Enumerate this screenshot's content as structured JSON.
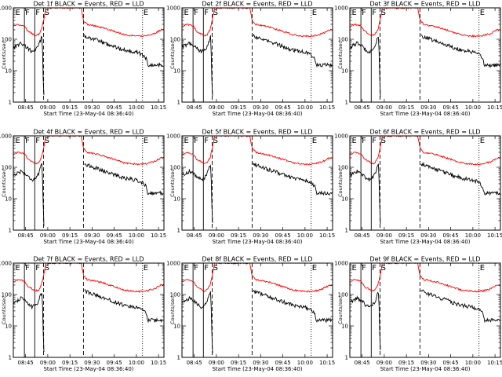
{
  "figure": {
    "y_label": "Counts/sec",
    "x_label": "Start Time (23-May-04 08:36:40)"
  },
  "chart_data": {
    "type": "line",
    "layout": "3x3 grid of panels",
    "title_template": "Det {n}f BLACK = Events, RED = LLD",
    "xlabel": "Start Time (23-May-04 08:36:40)",
    "ylabel": "Counts/sec",
    "yscale": "log",
    "ylim": [
      1,
      1000
    ],
    "y_ticks": [
      "1",
      "10",
      "100",
      "1000"
    ],
    "x_range_min_after_start": [
      0,
      102
    ],
    "x_ticks": [
      {
        "t": 8.33,
        "label": "08:45"
      },
      {
        "t": 23.33,
        "label": "09:00"
      },
      {
        "t": 38.33,
        "label": "09:15"
      },
      {
        "t": 53.33,
        "label": "09:30"
      },
      {
        "t": 68.33,
        "label": "09:45"
      },
      {
        "t": 83.33,
        "label": "10:00"
      },
      {
        "t": 98.33,
        "label": "10:15"
      }
    ],
    "markers": [
      {
        "t": 0.8,
        "label": "E",
        "style": "none"
      },
      {
        "t": 7.5,
        "label": "F",
        "style": "solid"
      },
      {
        "t": 14.5,
        "label": "F",
        "style": "solid"
      },
      {
        "t": 20.5,
        "label": "S",
        "style": "dashed"
      },
      {
        "t": 47.5,
        "label": "",
        "style": "dashed"
      },
      {
        "t": 87.5,
        "label": "E",
        "style": "dotted"
      }
    ],
    "series": [
      {
        "name": "Events",
        "color": "#000000",
        "t": [
          0,
          5,
          7.5,
          10,
          13,
          15,
          17,
          19.5,
          20.5,
          21,
          26,
          30,
          35,
          40,
          48,
          52,
          56,
          60,
          64,
          68,
          72,
          76,
          80,
          84,
          86,
          88,
          90,
          91
        ],
        "values": [
          55,
          75,
          65,
          50,
          40,
          45,
          60,
          130,
          2,
          1,
          null,
          null,
          null,
          null,
          130,
          110,
          95,
          80,
          70,
          60,
          50,
          45,
          42,
          38,
          35,
          30,
          25,
          15
        ]
      },
      {
        "name": "LLD",
        "color": "#ff0000",
        "t": [
          0,
          3,
          7.5,
          10,
          13,
          15,
          17,
          19,
          20.5,
          22,
          24,
          40,
          46,
          47.5,
          50,
          55,
          60,
          65,
          70,
          75,
          80,
          85,
          90,
          95,
          100
        ],
        "values": [
          250,
          300,
          270,
          180,
          150,
          130,
          140,
          200,
          400,
          1000,
          1000,
          1000,
          1000,
          400,
          300,
          270,
          240,
          200,
          170,
          140,
          130,
          125,
          130,
          150,
          200
        ]
      }
    ],
    "panels": [
      {
        "title": "Det 1f BLACK = Events, RED = LLD"
      },
      {
        "title": "Det 2f BLACK = Events, RED = LLD"
      },
      {
        "title": "Det 3f BLACK = Events, RED = LLD"
      },
      {
        "title": "Det 4f BLACK = Events, RED = LLD"
      },
      {
        "title": "Det 5f BLACK = Events, RED = LLD"
      },
      {
        "title": "Det 6f BLACK = Events, RED = LLD"
      },
      {
        "title": "Det 7f BLACK = Events, RED = LLD"
      },
      {
        "title": "Det 8f BLACK = Events, RED = LLD"
      },
      {
        "title": "Det 9f BLACK = Events, RED = LLD"
      }
    ]
  }
}
